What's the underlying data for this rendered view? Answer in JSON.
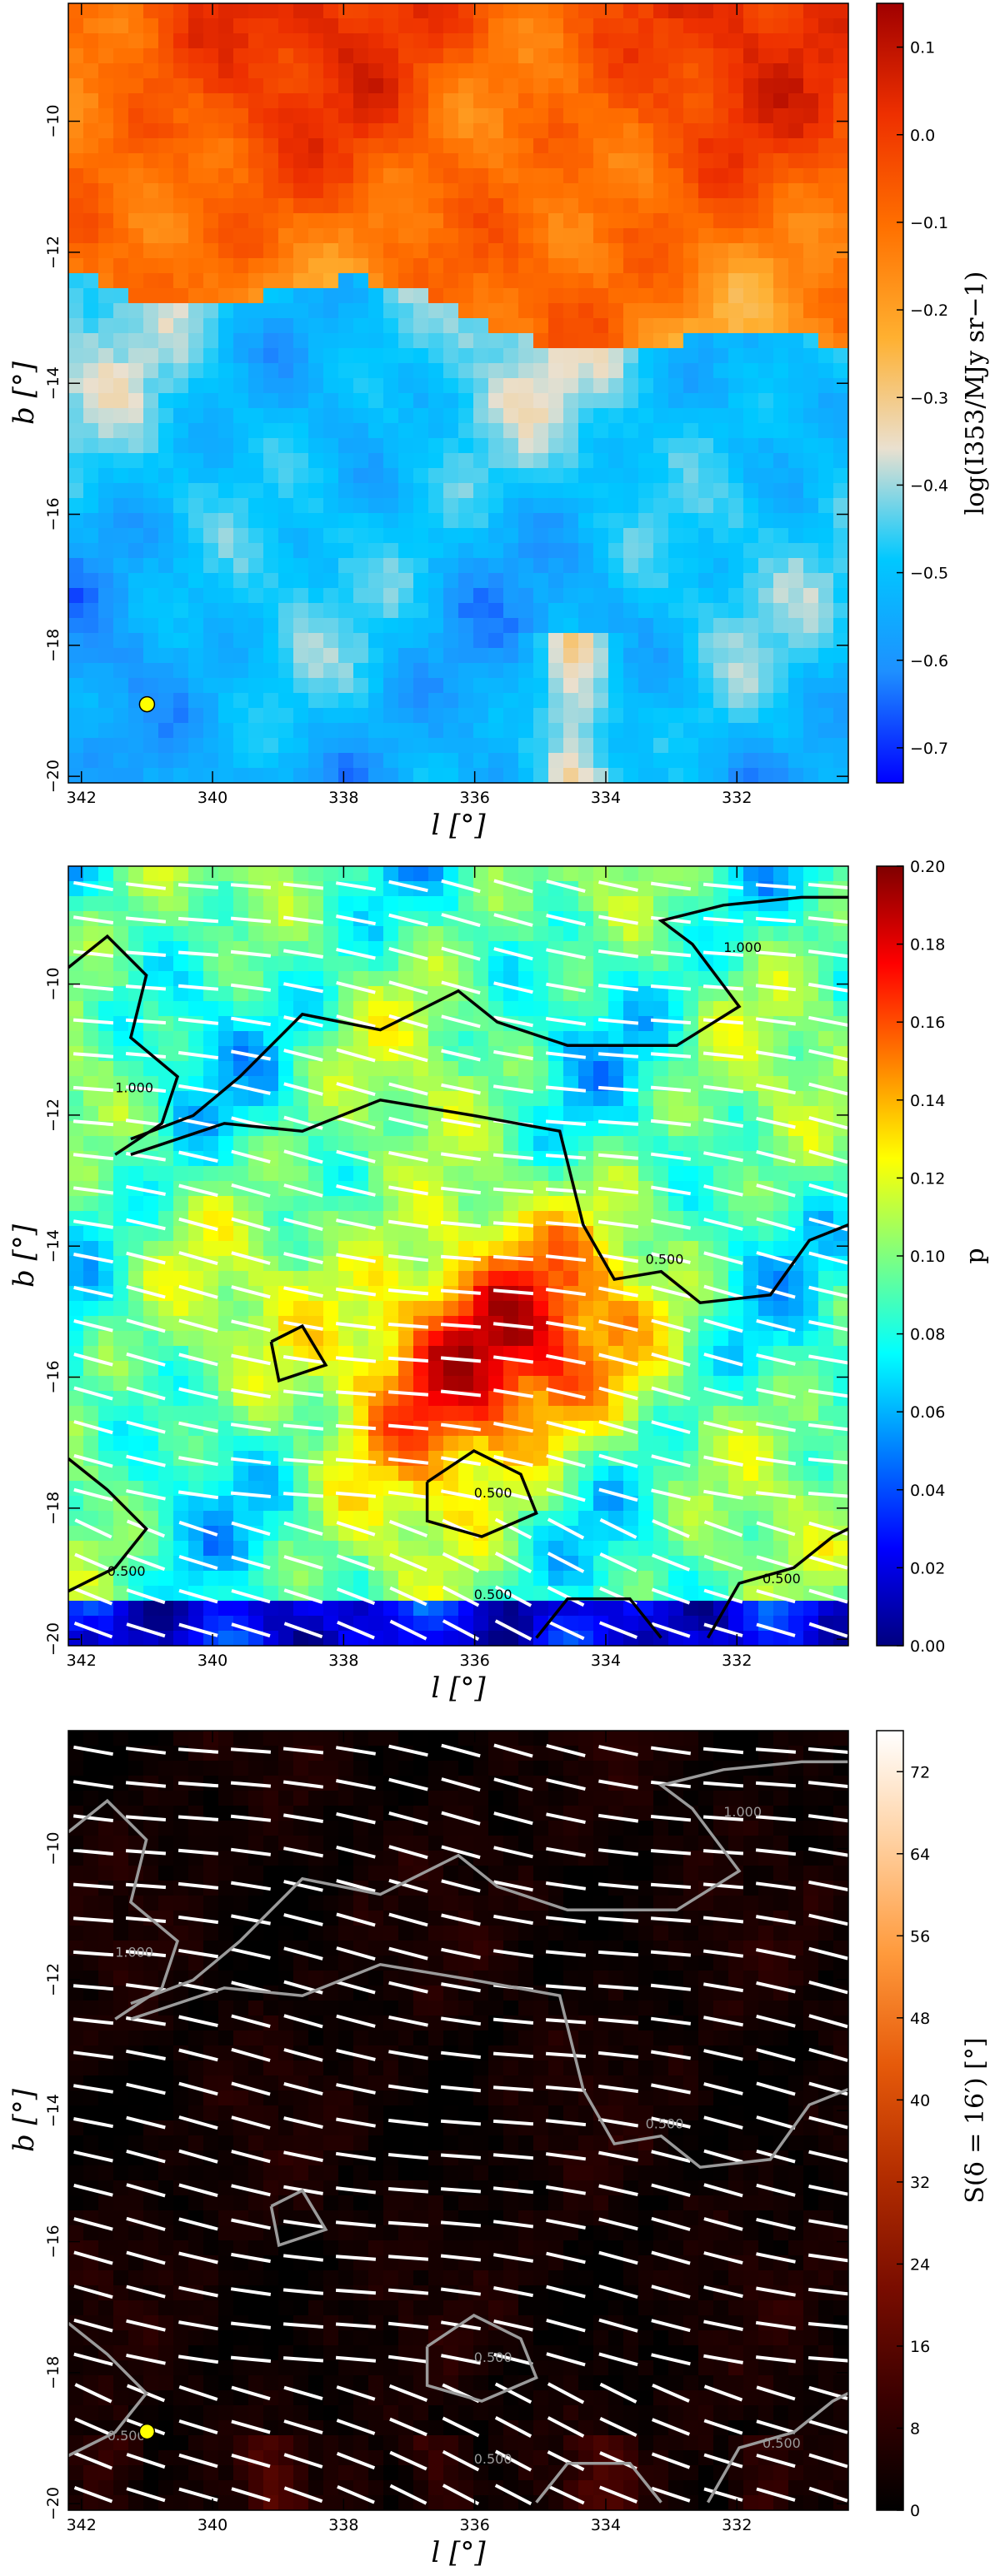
{
  "chart_data": [
    {
      "type": "heatmap",
      "title": "",
      "xlabel": "l [°]",
      "ylabel": "b [°]",
      "xlim": [
        342.2,
        330.3
      ],
      "ylim": [
        -20.1,
        -8.2
      ],
      "xticks": [
        "342",
        "340",
        "338",
        "336",
        "334",
        "332"
      ],
      "yticks": [
        "−10",
        "−12",
        "−14",
        "−16",
        "−18",
        "−20"
      ],
      "colorbar": {
        "label": "log(I353/MJy sr−1)",
        "range": [
          -0.74,
          0.15
        ],
        "ticks": [
          "0.1",
          "0.0",
          "−0.1",
          "−0.2",
          "−0.3",
          "−0.4",
          "−0.5",
          "−0.6",
          "−0.7"
        ],
        "colormap": [
          "#0000ff",
          "#1e90ff",
          "#00c8ff",
          "#eae0cf",
          "#ffb030",
          "#ff7000",
          "#ee3000",
          "#a00000"
        ]
      },
      "marker": {
        "l": 341.0,
        "b": -18.9,
        "color": "#ffff00"
      },
      "contours": [],
      "vectors": false
    },
    {
      "type": "heatmap",
      "title": "",
      "xlabel": "l [°]",
      "ylabel": "b [°]",
      "xlim": [
        342.2,
        330.3
      ],
      "ylim": [
        -20.1,
        -8.2
      ],
      "xticks": [
        "342",
        "340",
        "338",
        "336",
        "334",
        "332"
      ],
      "yticks": [
        "−10",
        "−12",
        "−14",
        "−16",
        "−18",
        "−20"
      ],
      "colorbar": {
        "label": "p",
        "range": [
          0.0,
          0.2
        ],
        "ticks": [
          "0.20",
          "0.18",
          "0.16",
          "0.14",
          "0.12",
          "0.10",
          "0.08",
          "0.06",
          "0.04",
          "0.02",
          "0.00"
        ],
        "colormap": [
          "#00007f",
          "#0000ff",
          "#007fff",
          "#00ffff",
          "#7fff7f",
          "#ffff00",
          "#ff7f00",
          "#ff0000",
          "#7f0000"
        ]
      },
      "marker": null,
      "contours": [
        {
          "label": "1.000",
          "color": "#000000"
        },
        {
          "label": "0.500",
          "color": "#000000"
        }
      ],
      "vectors": true
    },
    {
      "type": "heatmap",
      "title": "",
      "xlabel": "l [°]",
      "ylabel": "b [°]",
      "xlim": [
        342.2,
        330.3
      ],
      "ylim": [
        -20.1,
        -8.2
      ],
      "xticks": [
        "342",
        "340",
        "338",
        "336",
        "334",
        "332"
      ],
      "yticks": [
        "−10",
        "−12",
        "−14",
        "−16",
        "−18",
        "−20"
      ],
      "colorbar": {
        "label": "S(δ = 16′) [°]",
        "range": [
          0,
          76
        ],
        "ticks": [
          "72",
          "64",
          "56",
          "48",
          "40",
          "32",
          "24",
          "16",
          "8",
          "0"
        ],
        "colormap": [
          "#000000",
          "#3a0000",
          "#7a0d00",
          "#b32d00",
          "#e65a0a",
          "#ff9a3c",
          "#ffd0a0",
          "#ffffff"
        ]
      },
      "marker": {
        "l": 341.0,
        "b": -18.9,
        "color": "#ffff00"
      },
      "contours": [
        {
          "label": "1.000",
          "color": "#9a9a9a"
        },
        {
          "label": "0.500",
          "color": "#9a9a9a"
        }
      ],
      "vectors": true
    }
  ]
}
